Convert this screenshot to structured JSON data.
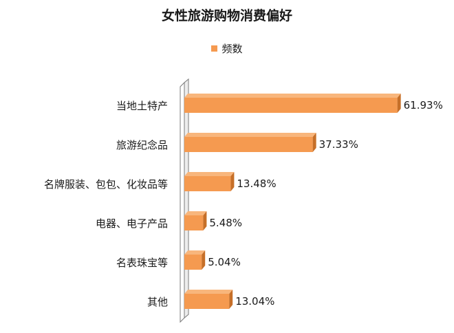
{
  "colors": {
    "bar_front": "#f59a50",
    "bar_top": "#f8b67c",
    "bar_side": "#c66f28",
    "wall_front": "#ffffff",
    "wall_side": "#ededed",
    "wall_stroke": "#7a7a7a",
    "text": "#1a1a1a"
  },
  "chart_data": {
    "type": "bar",
    "orientation": "horizontal",
    "style": "3d",
    "title": "女性旅游购物消费偏好",
    "legend": {
      "position": "top",
      "entries": [
        "频数"
      ]
    },
    "series": [
      {
        "name": "频数",
        "values": [
          61.93,
          37.33,
          13.48,
          5.48,
          5.04,
          13.04
        ],
        "labels": [
          "61.93%",
          "37.33%",
          "13.48%",
          "5.48%",
          "5.04%",
          "13.04%"
        ]
      }
    ],
    "categories": [
      "当地土特产",
      "旅游纪念品",
      "名牌服装、包包、化妆品等",
      "电器、电子产品",
      "名表珠宝等",
      "其他"
    ],
    "xlim": [
      0,
      70
    ],
    "grid": false,
    "value_axis_visible": false
  }
}
